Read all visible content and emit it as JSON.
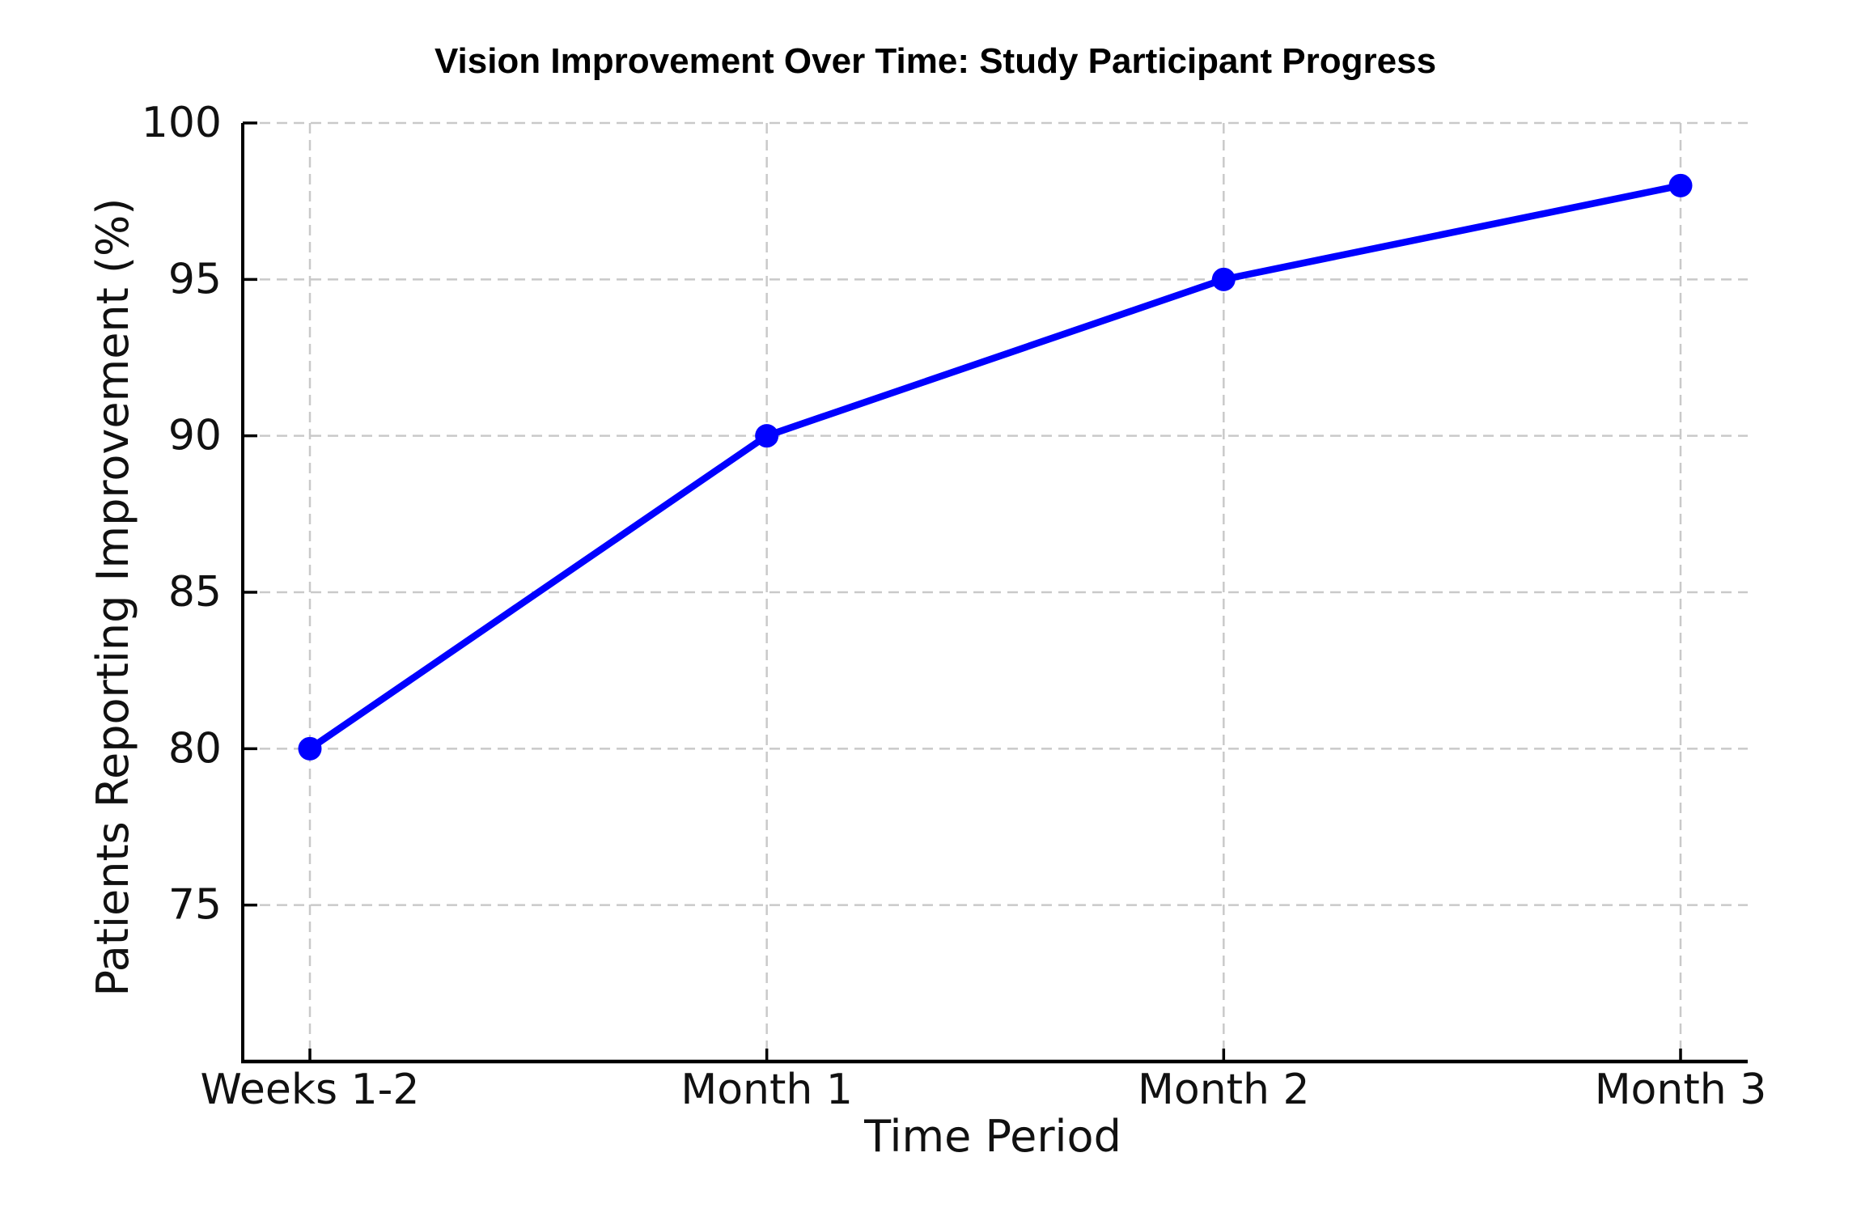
{
  "chart_data": {
    "type": "line",
    "title": "Vision Improvement Over Time: Study Participant Progress",
    "xlabel": "Time Period",
    "ylabel": "Patients Reporting Improvement (%)",
    "categories": [
      "Weeks 1-2",
      "Month 1",
      "Month 2",
      "Month 3"
    ],
    "values": [
      80,
      90,
      95,
      98
    ],
    "ylim": [
      70,
      100
    ],
    "yticks": [
      75,
      80,
      85,
      90,
      95,
      100
    ],
    "grid": true,
    "grid_style": "dashed",
    "legend": false,
    "marker": "circle",
    "colors": {
      "line": "#0000ff",
      "marker": "#0000ff",
      "grid": "#c9c9c9",
      "axis": "#000000",
      "text": "#111111",
      "background": "#ffffff"
    }
  }
}
